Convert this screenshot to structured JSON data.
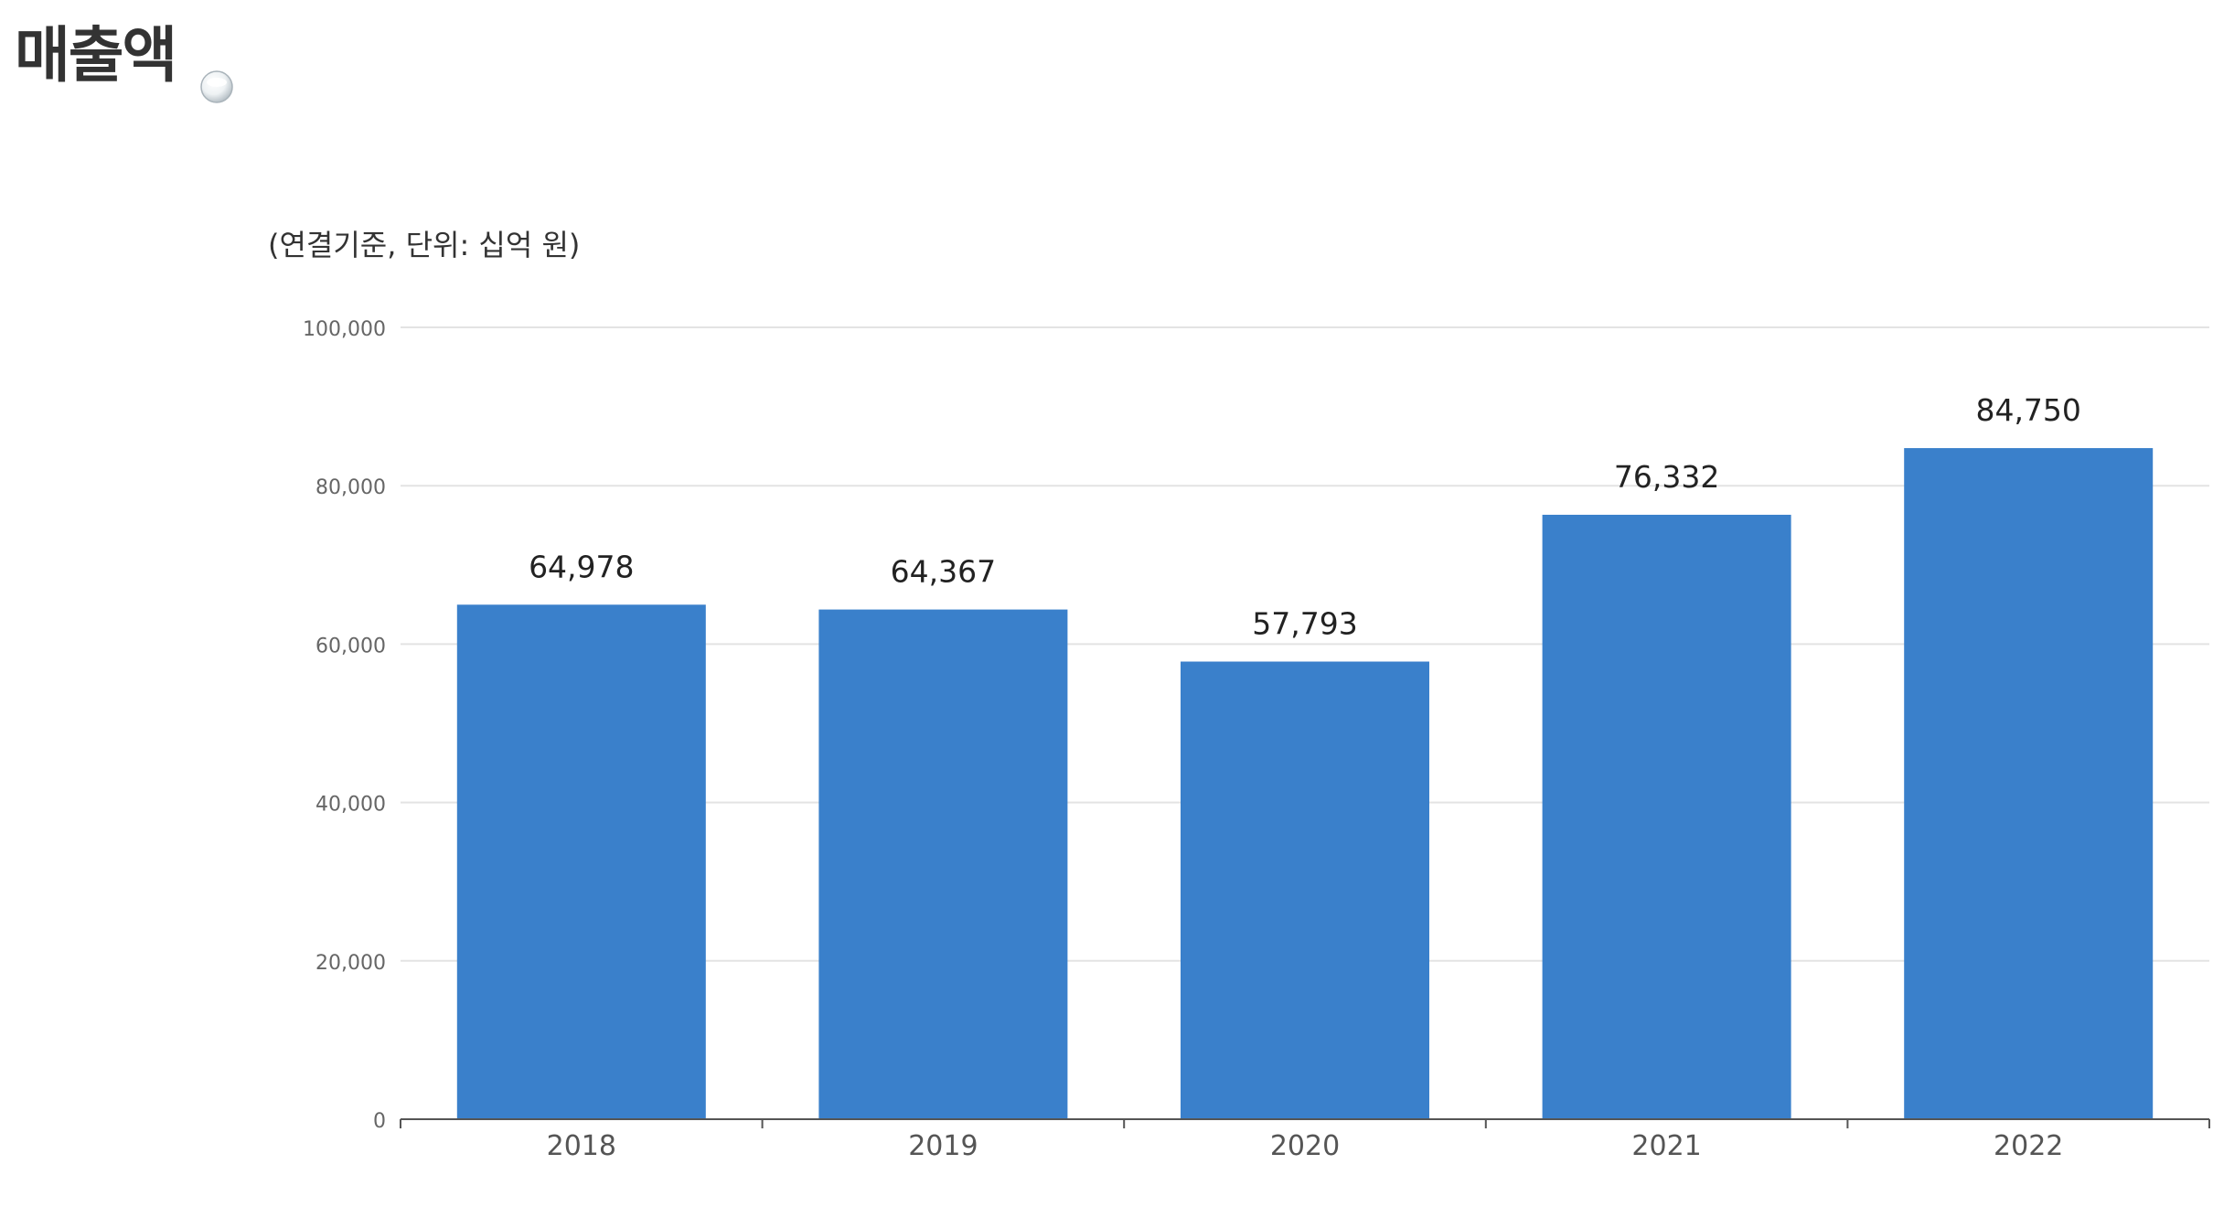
{
  "page": {
    "title": "매출액"
  },
  "chart_data": {
    "type": "bar",
    "subtitle": "(연결기준, 단위: 십억 원)",
    "categories": [
      "2018",
      "2019",
      "2020",
      "2021",
      "2022"
    ],
    "values": [
      64978,
      64367,
      57793,
      76332,
      84750
    ],
    "value_labels": [
      "64,978",
      "64,367",
      "57,793",
      "76,332",
      "84,750"
    ],
    "ylim": [
      0,
      100000
    ],
    "yticks": [
      0,
      20000,
      40000,
      60000,
      80000,
      100000
    ],
    "ytick_labels": [
      "0",
      "20,000",
      "40,000",
      "60,000",
      "80,000",
      "100,000"
    ],
    "xlabel": "",
    "ylabel": "",
    "grid": true,
    "bar_color": "#3a80cb",
    "grid_color": "#e3e3e3",
    "axis_color": "#555555"
  }
}
